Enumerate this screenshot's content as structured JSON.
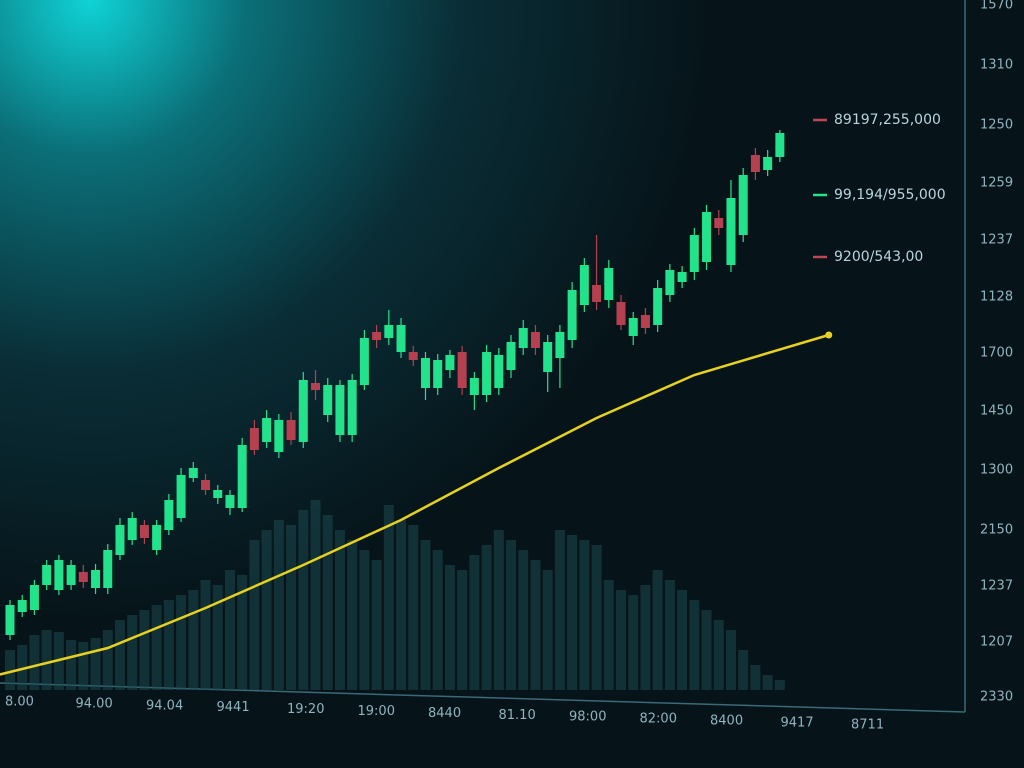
{
  "chart_data": {
    "type": "candlestick",
    "x_labels": [
      "8.00",
      "94.00",
      "94.04",
      "9441",
      "19:20",
      "19:00",
      "8440",
      "81.10",
      "98:00",
      "82:00",
      "8400",
      "9417",
      "8711"
    ],
    "y_labels": [
      "1570",
      "1310",
      "1250",
      "1259",
      "1237",
      "1128",
      "1700",
      "1450",
      "1300",
      "2150",
      "1237",
      "1207",
      "2330"
    ],
    "ylim": [
      0,
      700
    ],
    "open": [
      65,
      88,
      90,
      115,
      110,
      115,
      128,
      112,
      112,
      145,
      160,
      175,
      150,
      170,
      182,
      222,
      220,
      202,
      192,
      192,
      272,
      258,
      248,
      280,
      258,
      317,
      285,
      265,
      265,
      315,
      368,
      362,
      348,
      348,
      312,
      312,
      330,
      348,
      305,
      305,
      312,
      330,
      352,
      368,
      328,
      342,
      360,
      395,
      415,
      400,
      398,
      364,
      385,
      375,
      405,
      418,
      428,
      438,
      482,
      435,
      465,
      545,
      530,
      543
    ],
    "high": [
      100,
      105,
      120,
      140,
      145,
      140,
      135,
      136,
      156,
      182,
      188,
      180,
      180,
      206,
      232,
      238,
      226,
      215,
      210,
      262,
      280,
      290,
      286,
      288,
      328,
      330,
      322,
      320,
      326,
      370,
      375,
      390,
      382,
      354,
      348,
      346,
      350,
      354,
      328,
      355,
      352,
      365,
      380,
      375,
      365,
      375,
      418,
      442,
      465,
      440,
      405,
      388,
      392,
      420,
      436,
      434,
      472,
      495,
      490,
      520,
      532,
      552,
      550,
      570
    ],
    "low": [
      60,
      83,
      85,
      110,
      105,
      110,
      112,
      106,
      106,
      140,
      155,
      156,
      145,
      165,
      178,
      218,
      205,
      196,
      185,
      188,
      245,
      252,
      242,
      255,
      252,
      300,
      278,
      258,
      258,
      310,
      352,
      355,
      342,
      334,
      300,
      305,
      322,
      305,
      290,
      298,
      305,
      322,
      345,
      345,
      308,
      312,
      352,
      388,
      390,
      392,
      370,
      355,
      366,
      368,
      398,
      412,
      420,
      430,
      465,
      428,
      458,
      520,
      524,
      538
    ],
    "close": [
      95,
      100,
      115,
      135,
      140,
      135,
      118,
      130,
      150,
      175,
      182,
      162,
      175,
      200,
      225,
      232,
      210,
      210,
      205,
      255,
      250,
      282,
      280,
      260,
      320,
      310,
      315,
      315,
      320,
      362,
      360,
      375,
      375,
      340,
      342,
      340,
      345,
      312,
      322,
      348,
      345,
      358,
      372,
      352,
      358,
      368,
      410,
      435,
      398,
      432,
      375,
      382,
      372,
      412,
      430,
      428,
      465,
      488,
      472,
      502,
      525,
      528,
      543,
      567
    ],
    "up_color": "#22e38c",
    "down_color": "#b5404f",
    "volume": [
      40,
      45,
      55,
      60,
      58,
      50,
      48,
      52,
      60,
      70,
      75,
      80,
      85,
      90,
      95,
      100,
      110,
      105,
      120,
      115,
      150,
      160,
      170,
      165,
      180,
      190,
      175,
      160,
      150,
      140,
      130,
      185,
      170,
      165,
      150,
      140,
      125,
      120,
      135,
      145,
      160,
      150,
      140,
      130,
      120,
      160,
      155,
      150,
      145,
      110,
      100,
      95,
      105,
      120,
      110,
      100,
      90,
      80,
      70,
      60,
      40,
      25,
      15,
      10
    ],
    "volume_color": "#1b4950",
    "trend": {
      "x": [
        -1,
        8,
        16,
        24,
        32,
        40,
        48,
        56,
        67
      ],
      "values": [
        25,
        52,
        92,
        135,
        180,
        232,
        282,
        325,
        365
      ],
      "color": "#e6d21e"
    },
    "legend": [
      {
        "label": "89197,255,000",
        "color": "#c04552"
      },
      {
        "label": "99,194/955,000",
        "color": "#22e38c"
      },
      {
        "label": "9200/543,00",
        "color": "#c04552"
      }
    ]
  }
}
